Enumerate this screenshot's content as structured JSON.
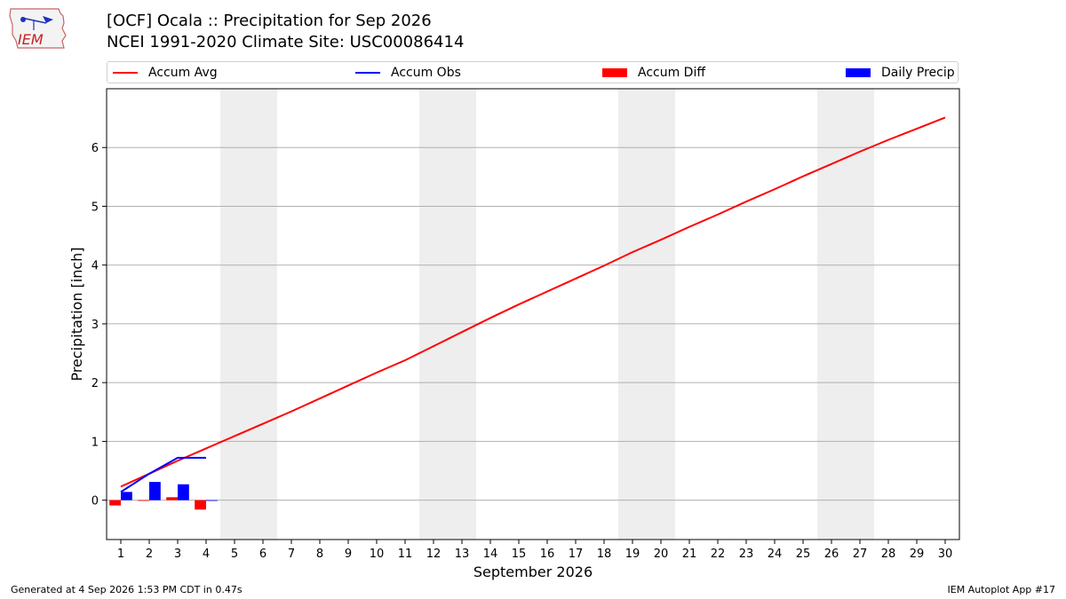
{
  "header": {
    "title_line1": "[OCF] Ocala :: Precipitation for Sep 2026",
    "title_line2": "NCEI 1991-2020 Climate Site: USC00086414"
  },
  "logo": {
    "text": "IEM",
    "icon": "iem-logo-icon"
  },
  "legend": {
    "position": "top",
    "items": [
      {
        "label": "Accum Avg",
        "kind": "line",
        "color": "#ff0000"
      },
      {
        "label": "Accum Obs",
        "kind": "line",
        "color": "#0000ff"
      },
      {
        "label": "Accum Diff",
        "kind": "bar",
        "color": "#ff0000"
      },
      {
        "label": "Daily Precip",
        "kind": "bar",
        "color": "#0000ff"
      }
    ]
  },
  "chart_data": {
    "type": "line",
    "title": "[OCF] Ocala :: Precipitation for Sep 2026",
    "subtitle": "NCEI 1991-2020 Climate Site: USC00086414",
    "xlabel": "September 2026",
    "ylabel": "Precipitation [inch]",
    "xlim": [
      0.5,
      30.5
    ],
    "ylim": [
      -0.67,
      7.0
    ],
    "x_ticks": [
      1,
      2,
      3,
      4,
      5,
      6,
      7,
      8,
      9,
      10,
      11,
      12,
      13,
      14,
      15,
      16,
      17,
      18,
      19,
      20,
      21,
      22,
      23,
      24,
      25,
      26,
      27,
      28,
      29,
      30
    ],
    "y_ticks": [
      0,
      1,
      2,
      3,
      4,
      5,
      6
    ],
    "grid": "horizontal",
    "weekend_shading_days": [
      [
        5,
        6
      ],
      [
        12,
        13
      ],
      [
        19,
        20
      ],
      [
        26,
        27
      ]
    ],
    "series": [
      {
        "name": "Accum Avg",
        "kind": "line",
        "color": "#ff0000",
        "x": [
          1,
          2,
          3,
          4,
          5,
          6,
          7,
          8,
          9,
          10,
          11,
          12,
          13,
          14,
          15,
          16,
          17,
          18,
          19,
          20,
          21,
          22,
          23,
          24,
          25,
          26,
          27,
          28,
          29,
          30
        ],
        "values": [
          0.23,
          0.45,
          0.67,
          0.88,
          1.09,
          1.3,
          1.51,
          1.73,
          1.95,
          2.17,
          2.38,
          2.62,
          2.86,
          3.1,
          3.33,
          3.55,
          3.77,
          3.99,
          4.22,
          4.43,
          4.65,
          4.86,
          5.08,
          5.29,
          5.51,
          5.72,
          5.93,
          6.13,
          6.32,
          6.51
        ]
      },
      {
        "name": "Accum Obs",
        "kind": "line",
        "color": "#0000ff",
        "x": [
          1,
          2,
          3,
          4
        ],
        "values": [
          0.14,
          0.45,
          0.72,
          0.72
        ]
      },
      {
        "name": "Accum Diff",
        "kind": "bar",
        "color": "#ff0000",
        "x": [
          1,
          2,
          3,
          4
        ],
        "values": [
          -0.09,
          0.0,
          0.05,
          -0.16
        ]
      },
      {
        "name": "Daily Precip",
        "kind": "bar",
        "color": "#0000ff",
        "x": [
          1,
          2,
          3,
          4
        ],
        "values": [
          0.14,
          0.31,
          0.27,
          0.0
        ]
      }
    ]
  },
  "footer": {
    "generated": "Generated at 4 Sep 2026 1:53 PM CDT in 0.47s",
    "app": "IEM Autoplot App #17"
  }
}
